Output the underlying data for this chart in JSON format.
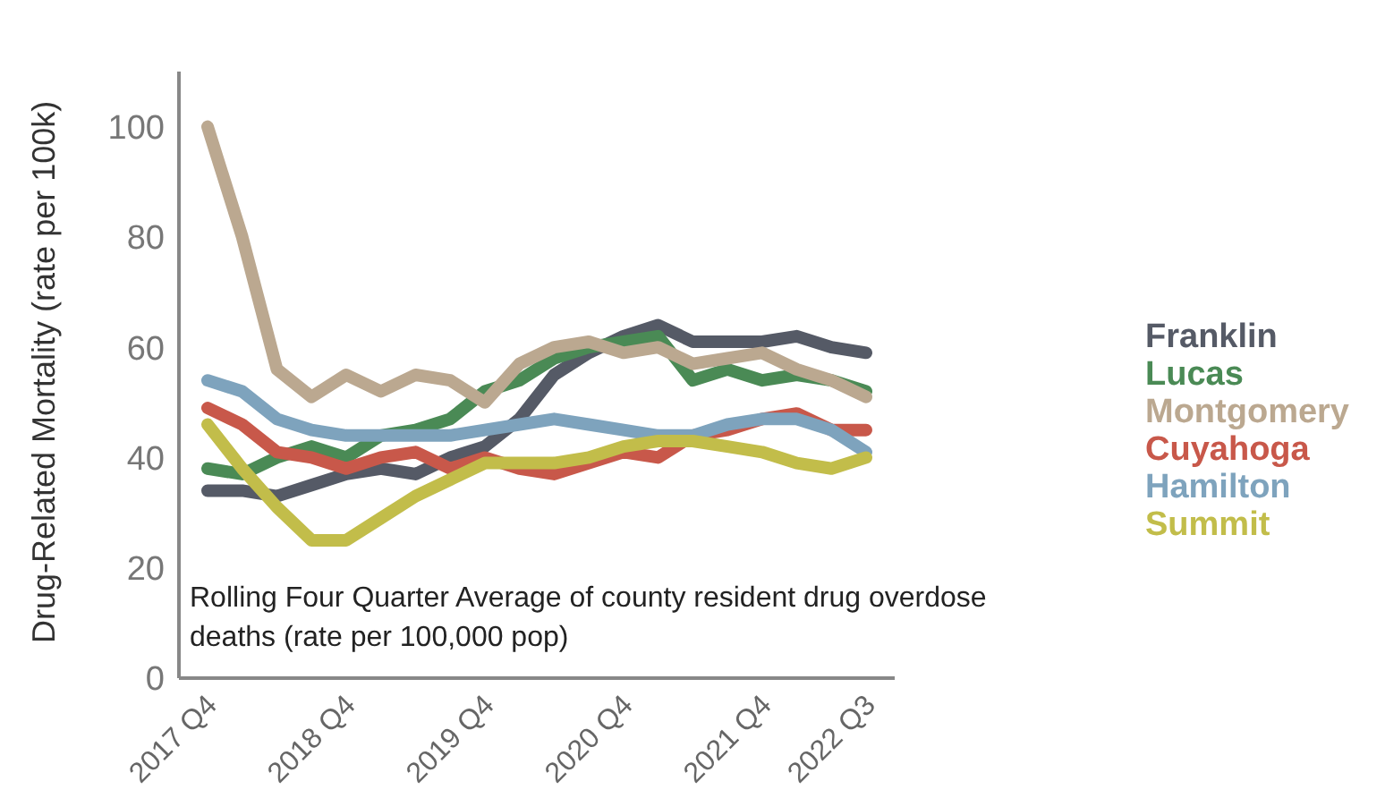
{
  "chart_data": {
    "type": "line",
    "ylabel": "Drug-Related Mortality (rate per 100k)",
    "categories": [
      "2017 Q4",
      null,
      null,
      null,
      "2018 Q4",
      null,
      null,
      null,
      "2019 Q4",
      null,
      null,
      null,
      "2020 Q4",
      null,
      null,
      null,
      "2021 Q4",
      null,
      null,
      "2022 Q3"
    ],
    "series": [
      {
        "name": "Franklin",
        "color": "#555a66",
        "values": [
          34,
          34,
          33,
          35,
          37,
          38,
          37,
          40,
          42,
          47,
          55,
          59,
          62,
          64,
          61,
          61,
          61,
          62,
          60,
          59
        ]
      },
      {
        "name": "Lucas",
        "color": "#4a8a55",
        "values": [
          38,
          37,
          40,
          42,
          40,
          44,
          45,
          47,
          52,
          54,
          58,
          60,
          61,
          62,
          54,
          56,
          54,
          55,
          54,
          52
        ]
      },
      {
        "name": "Montgomery",
        "color": "#bba890",
        "values": [
          100,
          80,
          56,
          51,
          55,
          52,
          55,
          54,
          50,
          57,
          60,
          61,
          59,
          60,
          57,
          58,
          59,
          56,
          54,
          51
        ]
      },
      {
        "name": "Cuyahoga",
        "color": "#c8584a",
        "values": [
          49,
          46,
          41,
          40,
          38,
          40,
          41,
          38,
          40,
          38,
          37,
          39,
          41,
          40,
          44,
          45,
          47,
          48,
          45,
          45
        ]
      },
      {
        "name": "Hamilton",
        "color": "#7ea3bd",
        "values": [
          54,
          52,
          47,
          45,
          44,
          44,
          44,
          44,
          45,
          46,
          47,
          46,
          45,
          44,
          44,
          46,
          47,
          47,
          45,
          41
        ]
      },
      {
        "name": "Summit",
        "color": "#c2bd4a",
        "values": [
          46,
          38,
          31,
          25,
          25,
          29,
          33,
          36,
          39,
          39,
          39,
          40,
          42,
          43,
          43,
          42,
          41,
          39,
          38,
          40
        ]
      }
    ],
    "ylim": [
      0,
      110
    ],
    "yticks": [
      0,
      20,
      40,
      60,
      80,
      100
    ],
    "grid": false,
    "legend": "right",
    "marker": "none",
    "line_style": "solid",
    "annotations": [
      "Rolling Four Quarter Average of county resident drug overdose deaths (rate per 100,000 pop)"
    ]
  }
}
